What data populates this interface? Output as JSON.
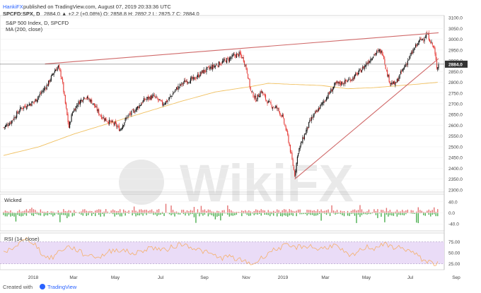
{
  "header": {
    "publisher": "HankiFX",
    "published_text": "published on TradingView.com, August 07, 2019 20:33:36 UTC",
    "symbol": "SPCFD:SPX, D",
    "price_line": "2884.0 ▲ +2.2 (+0.08%) O: 2858.8 H: 2892.2 L: 2825.7 C: 2884.0"
  },
  "footer": {
    "created_with": "Created with",
    "brand": "TradingView"
  },
  "watermark": "WikiFX",
  "colors": {
    "up": "#26a69a",
    "down": "#ef5350",
    "candle_up": "#111111",
    "candle_down": "#e53935",
    "ma": "#f0c060",
    "trend": "#d06a6a",
    "rsi": "#f5b06a",
    "rsi_band": "#eadcf7",
    "green": "#4caf50",
    "red": "#e57373"
  },
  "chart_data": [
    {
      "type": "candlestick",
      "title": "S&P 500 Index, D, SPCFD",
      "legend": [
        "MA (200, close)"
      ],
      "x_labels": [
        "2018",
        "Mar",
        "May",
        "Jul",
        "Sep",
        "Nov",
        "2019",
        "Mar",
        "May",
        "Jul",
        "Sep"
      ],
      "y_ticks": [
        2300,
        2350,
        2400,
        2450,
        2500,
        2550,
        2600,
        2650,
        2700,
        2750,
        2800,
        2850,
        2900,
        2950,
        3000,
        3050,
        3100
      ],
      "ylim": [
        2290,
        3110
      ],
      "last_price": 2884.0,
      "close_path": [
        [
          0,
          2590
        ],
        [
          8,
          2615
        ],
        [
          20,
          2680
        ],
        [
          35,
          2710
        ],
        [
          50,
          2790
        ],
        [
          58,
          2855
        ],
        [
          62,
          2872
        ],
        [
          66,
          2820
        ],
        [
          70,
          2700
        ],
        [
          74,
          2590
        ],
        [
          78,
          2660
        ],
        [
          84,
          2700
        ],
        [
          92,
          2735
        ],
        [
          100,
          2710
        ],
        [
          110,
          2645
        ],
        [
          118,
          2620
        ],
        [
          126,
          2605
        ],
        [
          132,
          2580
        ],
        [
          140,
          2640
        ],
        [
          150,
          2675
        ],
        [
          160,
          2720
        ],
        [
          170,
          2735
        ],
        [
          180,
          2700
        ],
        [
          186,
          2715
        ],
        [
          196,
          2770
        ],
        [
          206,
          2805
        ],
        [
          216,
          2815
        ],
        [
          226,
          2850
        ],
        [
          236,
          2870
        ],
        [
          246,
          2890
        ],
        [
          256,
          2910
        ],
        [
          262,
          2925
        ],
        [
          268,
          2930
        ],
        [
          272,
          2905
        ],
        [
          276,
          2850
        ],
        [
          280,
          2760
        ],
        [
          286,
          2720
        ],
        [
          292,
          2760
        ],
        [
          298,
          2715
        ],
        [
          304,
          2690
        ],
        [
          310,
          2680
        ],
        [
          316,
          2640
        ],
        [
          322,
          2550
        ],
        [
          326,
          2460
        ],
        [
          330,
          2370
        ],
        [
          334,
          2480
        ],
        [
          340,
          2545
        ],
        [
          348,
          2625
        ],
        [
          356,
          2670
        ],
        [
          366,
          2730
        ],
        [
          376,
          2790
        ],
        [
          386,
          2800
        ],
        [
          396,
          2820
        ],
        [
          406,
          2860
        ],
        [
          414,
          2900
        ],
        [
          420,
          2930
        ],
        [
          426,
          2945
        ],
        [
          430,
          2935
        ],
        [
          434,
          2850
        ],
        [
          438,
          2800
        ],
        [
          444,
          2790
        ],
        [
          450,
          2840
        ],
        [
          458,
          2900
        ],
        [
          466,
          2960
        ],
        [
          472,
          2995
        ],
        [
          476,
          3005
        ],
        [
          480,
          3025
        ],
        [
          484,
          2990
        ],
        [
          488,
          2955
        ],
        [
          491,
          2870
        ],
        [
          493,
          2884
        ]
      ],
      "ma_path": [
        [
          0,
          2460
        ],
        [
          40,
          2500
        ],
        [
          80,
          2560
        ],
        [
          120,
          2610
        ],
        [
          160,
          2660
        ],
        [
          200,
          2710
        ],
        [
          240,
          2755
        ],
        [
          280,
          2780
        ],
        [
          300,
          2795
        ],
        [
          330,
          2790
        ],
        [
          360,
          2785
        ],
        [
          390,
          2770
        ],
        [
          420,
          2775
        ],
        [
          450,
          2785
        ],
        [
          480,
          2795
        ],
        [
          493,
          2800
        ]
      ],
      "trend_upper": [
        [
          47,
          2885
        ],
        [
          493,
          3030
        ]
      ],
      "trend_lower": [
        [
          330,
          2350
        ],
        [
          493,
          2910
        ]
      ]
    },
    {
      "type": "bar",
      "title": "Wicked",
      "y_ticks": [
        40.0,
        0.0,
        -40.0
      ],
      "ylim": [
        -60,
        60
      ]
    },
    {
      "type": "line",
      "title": "RSI (14, close)",
      "y_ticks": [
        75.0,
        50.0,
        25.0
      ],
      "ylim": [
        15,
        90
      ],
      "band": [
        25,
        75
      ],
      "series": [
        {
          "values": [
            50,
            60,
            72,
            82,
            68,
            42,
            38,
            55,
            64,
            58,
            46,
            44,
            40,
            52,
            58,
            55,
            48,
            52,
            62,
            60,
            55,
            64,
            70,
            66,
            58,
            52,
            45,
            38,
            42,
            35,
            30,
            24,
            38,
            52,
            60,
            66,
            62,
            64,
            66,
            58,
            62,
            68,
            55,
            40,
            52,
            64,
            60,
            70,
            64,
            62,
            58,
            48,
            35,
            28,
            24
          ]
        }
      ]
    }
  ]
}
